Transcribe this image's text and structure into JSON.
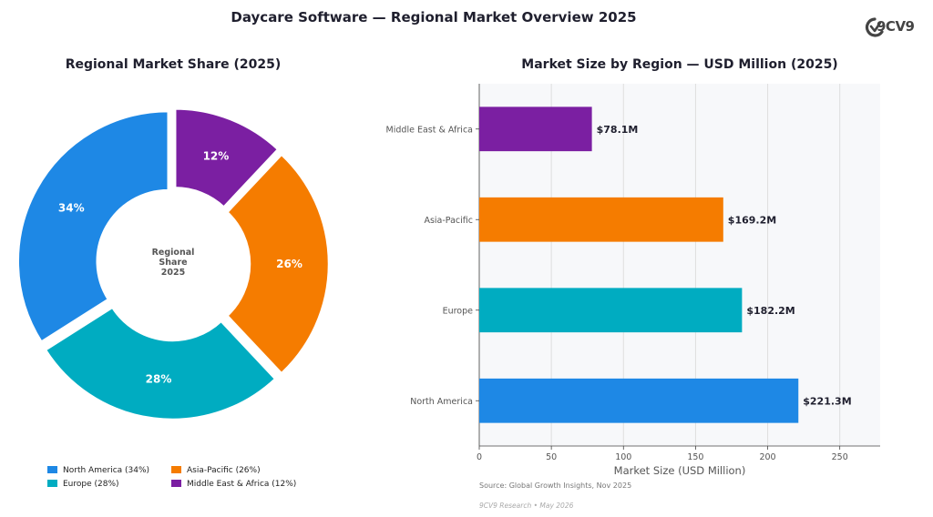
{
  "title": "Daycare Software — Regional Market Overview 2025",
  "logo_text": "9CV9",
  "source": "Source: Global Growth Insights, Nov 2025",
  "footer": "9CV9 Research  •  May 2026",
  "colors": {
    "north_america": "#1e88e5",
    "europe": "#00acc1",
    "asia_pacific": "#f57c00",
    "middle_east_africa": "#7b1fa2"
  },
  "chart_data": [
    {
      "type": "pie",
      "title": "Regional Market Share (2025)",
      "center_label": [
        "Regional",
        "Share",
        "2025"
      ],
      "slices": [
        {
          "label": "Middle East & Africa",
          "value": 12,
          "display": "12%",
          "color": "#7b1fa2"
        },
        {
          "label": "Asia-Pacific",
          "value": 26,
          "display": "26%",
          "color": "#f57c00"
        },
        {
          "label": "Europe",
          "value": 28,
          "display": "28%",
          "color": "#00acc1"
        },
        {
          "label": "North America",
          "value": 34,
          "display": "34%",
          "color": "#1e88e5"
        }
      ],
      "legend": [
        {
          "text": "North America  (34%)",
          "color": "#1e88e5"
        },
        {
          "text": "Asia-Pacific  (26%)",
          "color": "#f57c00"
        },
        {
          "text": "Europe  (28%)",
          "color": "#00acc1"
        },
        {
          "text": "Middle East & Africa  (12%)",
          "color": "#7b1fa2"
        }
      ],
      "legend_placement": "bottom"
    },
    {
      "type": "bar",
      "orientation": "horizontal",
      "title": "Market Size by Region — USD Million (2025)",
      "categories": [
        "Middle East & Africa",
        "Asia-Pacific",
        "Europe",
        "North America"
      ],
      "values": [
        78.1,
        169.2,
        182.2,
        221.3
      ],
      "data_labels": [
        "$78.1M",
        "$169.2M",
        "$182.2M",
        "$221.3M"
      ],
      "colors": [
        "#7b1fa2",
        "#f57c00",
        "#00acc1",
        "#1e88e5"
      ],
      "xlabel": "Market Size (USD Million)",
      "xlim": [
        0,
        278
      ],
      "xticks": [
        0,
        50,
        100,
        150,
        200,
        250
      ],
      "grid": "vertical"
    }
  ]
}
